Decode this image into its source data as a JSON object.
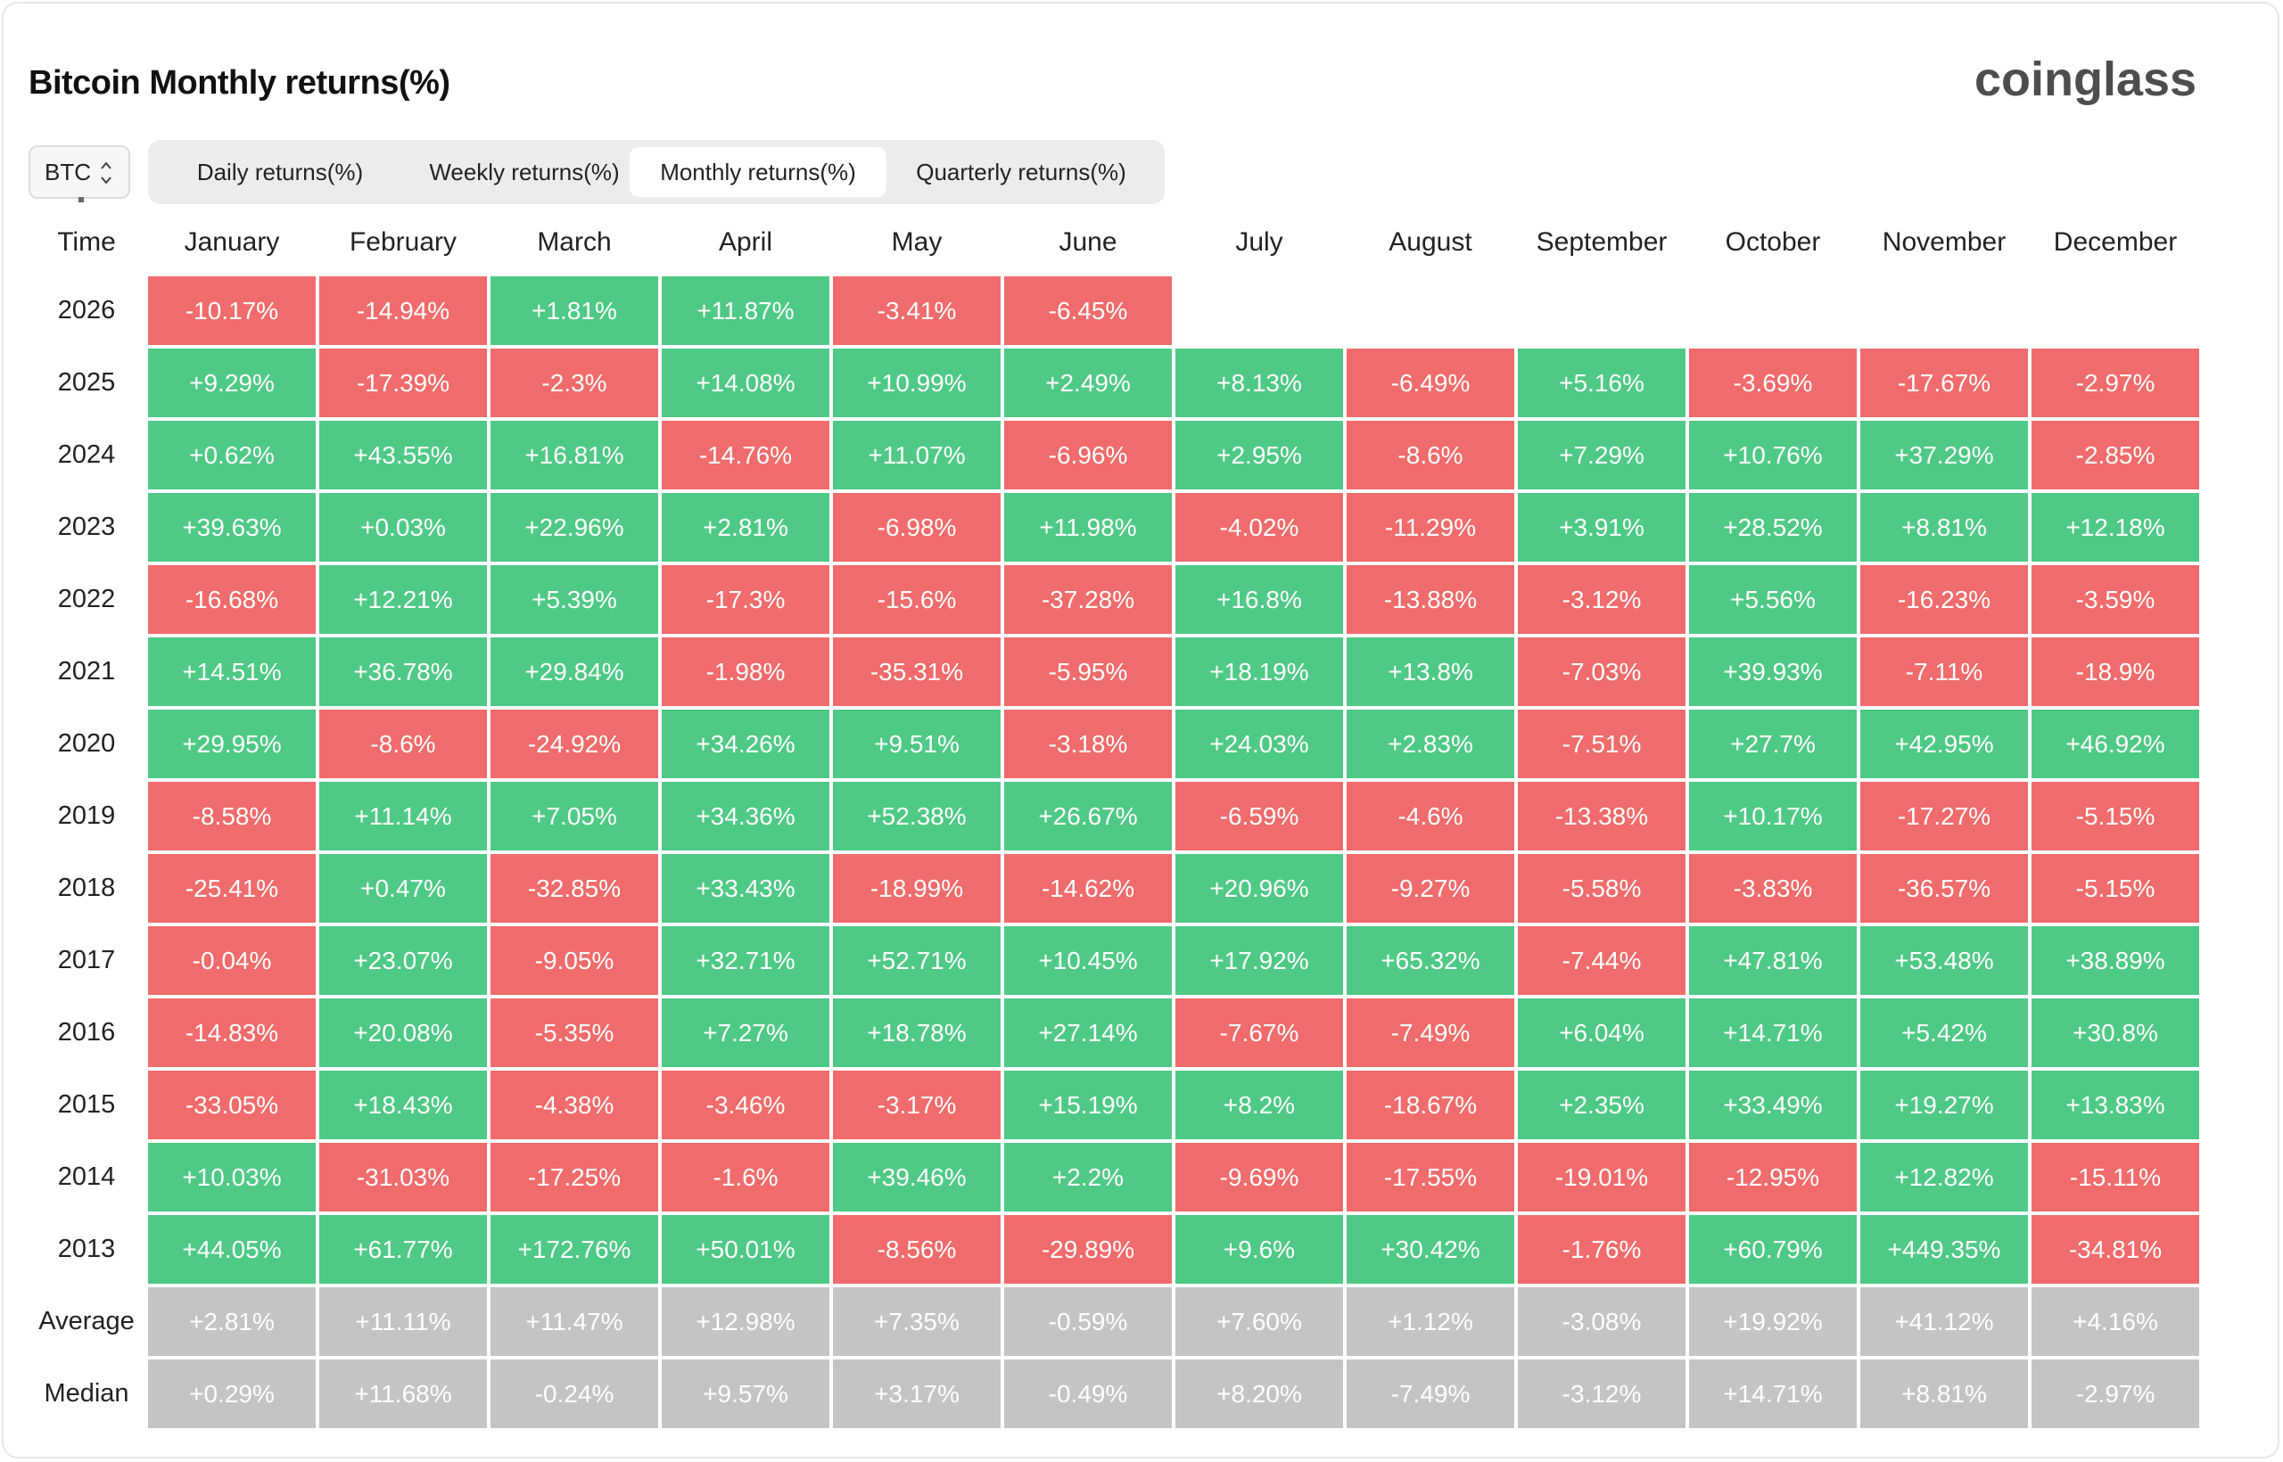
{
  "title": "Bitcoin Monthly returns(%)",
  "logo_text": "coinglass",
  "coin_selector": {
    "value": "BTC",
    "icon": "chevron-up-down-icon"
  },
  "tabs": [
    {
      "label": "Daily returns(%)",
      "active": false
    },
    {
      "label": "Weekly returns(%)",
      "active": false
    },
    {
      "label": "Monthly returns(%)",
      "active": true
    },
    {
      "label": "Quarterly returns(%)",
      "active": false
    }
  ],
  "colors": {
    "positive": "#4fc986",
    "negative": "#f06b6b",
    "summary": "#c4c4c4"
  },
  "table": {
    "time_header": "Time",
    "months": [
      "January",
      "February",
      "March",
      "April",
      "May",
      "June",
      "July",
      "August",
      "September",
      "October",
      "November",
      "December"
    ],
    "rows": [
      {
        "year": "2026",
        "values": [
          "-10.17%",
          "-14.94%",
          "+1.81%",
          "+11.87%",
          "-3.41%",
          "-6.45%"
        ]
      },
      {
        "year": "2025",
        "values": [
          "+9.29%",
          "-17.39%",
          "-2.3%",
          "+14.08%",
          "+10.99%",
          "+2.49%",
          "+8.13%",
          "-6.49%",
          "+5.16%",
          "-3.69%",
          "-17.67%",
          "-2.97%"
        ]
      },
      {
        "year": "2024",
        "values": [
          "+0.62%",
          "+43.55%",
          "+16.81%",
          "-14.76%",
          "+11.07%",
          "-6.96%",
          "+2.95%",
          "-8.6%",
          "+7.29%",
          "+10.76%",
          "+37.29%",
          "-2.85%"
        ]
      },
      {
        "year": "2023",
        "values": [
          "+39.63%",
          "+0.03%",
          "+22.96%",
          "+2.81%",
          "-6.98%",
          "+11.98%",
          "-4.02%",
          "-11.29%",
          "+3.91%",
          "+28.52%",
          "+8.81%",
          "+12.18%"
        ]
      },
      {
        "year": "2022",
        "values": [
          "-16.68%",
          "+12.21%",
          "+5.39%",
          "-17.3%",
          "-15.6%",
          "-37.28%",
          "+16.8%",
          "-13.88%",
          "-3.12%",
          "+5.56%",
          "-16.23%",
          "-3.59%"
        ]
      },
      {
        "year": "2021",
        "values": [
          "+14.51%",
          "+36.78%",
          "+29.84%",
          "-1.98%",
          "-35.31%",
          "-5.95%",
          "+18.19%",
          "+13.8%",
          "-7.03%",
          "+39.93%",
          "-7.11%",
          "-18.9%"
        ]
      },
      {
        "year": "2020",
        "values": [
          "+29.95%",
          "-8.6%",
          "-24.92%",
          "+34.26%",
          "+9.51%",
          "-3.18%",
          "+24.03%",
          "+2.83%",
          "-7.51%",
          "+27.7%",
          "+42.95%",
          "+46.92%"
        ]
      },
      {
        "year": "2019",
        "values": [
          "-8.58%",
          "+11.14%",
          "+7.05%",
          "+34.36%",
          "+52.38%",
          "+26.67%",
          "-6.59%",
          "-4.6%",
          "-13.38%",
          "+10.17%",
          "-17.27%",
          "-5.15%"
        ]
      },
      {
        "year": "2018",
        "values": [
          "-25.41%",
          "+0.47%",
          "-32.85%",
          "+33.43%",
          "-18.99%",
          "-14.62%",
          "+20.96%",
          "-9.27%",
          "-5.58%",
          "-3.83%",
          "-36.57%",
          "-5.15%"
        ]
      },
      {
        "year": "2017",
        "values": [
          "-0.04%",
          "+23.07%",
          "-9.05%",
          "+32.71%",
          "+52.71%",
          "+10.45%",
          "+17.92%",
          "+65.32%",
          "-7.44%",
          "+47.81%",
          "+53.48%",
          "+38.89%"
        ]
      },
      {
        "year": "2016",
        "values": [
          "-14.83%",
          "+20.08%",
          "-5.35%",
          "+7.27%",
          "+18.78%",
          "+27.14%",
          "-7.67%",
          "-7.49%",
          "+6.04%",
          "+14.71%",
          "+5.42%",
          "+30.8%"
        ]
      },
      {
        "year": "2015",
        "values": [
          "-33.05%",
          "+18.43%",
          "-4.38%",
          "-3.46%",
          "-3.17%",
          "+15.19%",
          "+8.2%",
          "-18.67%",
          "+2.35%",
          "+33.49%",
          "+19.27%",
          "+13.83%"
        ]
      },
      {
        "year": "2014",
        "values": [
          "+10.03%",
          "-31.03%",
          "-17.25%",
          "-1.6%",
          "+39.46%",
          "+2.2%",
          "-9.69%",
          "-17.55%",
          "-19.01%",
          "-12.95%",
          "+12.82%",
          "-15.11%"
        ]
      },
      {
        "year": "2013",
        "values": [
          "+44.05%",
          "+61.77%",
          "+172.76%",
          "+50.01%",
          "-8.56%",
          "-29.89%",
          "+9.6%",
          "+30.42%",
          "-1.76%",
          "+60.79%",
          "+449.35%",
          "-34.81%"
        ]
      }
    ],
    "summary_rows": [
      {
        "label": "Average",
        "values": [
          "+2.81%",
          "+11.11%",
          "+11.47%",
          "+12.98%",
          "+7.35%",
          "-0.59%",
          "+7.60%",
          "+1.12%",
          "-3.08%",
          "+19.92%",
          "+41.12%",
          "+4.16%"
        ]
      },
      {
        "label": "Median",
        "values": [
          "+0.29%",
          "+11.68%",
          "-0.24%",
          "+9.57%",
          "+3.17%",
          "-0.49%",
          "+8.20%",
          "-7.49%",
          "-3.12%",
          "+14.71%",
          "+8.81%",
          "-2.97%"
        ]
      }
    ]
  }
}
